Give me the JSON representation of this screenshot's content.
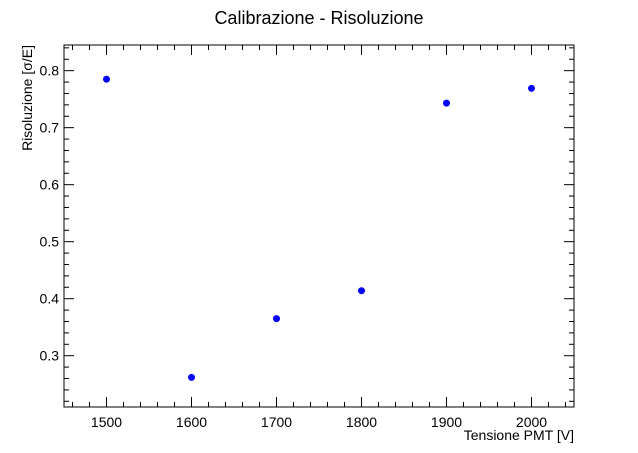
{
  "chart_data": {
    "type": "scatter",
    "title": "Calibrazione - Risoluzione",
    "xlabel": "Tensione PMT [V]",
    "ylabel": "Risoluzione [σ/E]",
    "xlim": [
      1450,
      2050
    ],
    "ylim": [
      0.21,
      0.845
    ],
    "x_ticks": [
      1500,
      1600,
      1700,
      1800,
      1900,
      2000
    ],
    "y_ticks": [
      0.3,
      0.4,
      0.5,
      0.6,
      0.7,
      0.8
    ],
    "points": [
      {
        "x": 1500,
        "y": 0.785
      },
      {
        "x": 1600,
        "y": 0.262
      },
      {
        "x": 1700,
        "y": 0.365
      },
      {
        "x": 1800,
        "y": 0.414
      },
      {
        "x": 1900,
        "y": 0.743
      },
      {
        "x": 2000,
        "y": 0.769
      }
    ],
    "marker_color": "#0000ff",
    "grid": false
  }
}
